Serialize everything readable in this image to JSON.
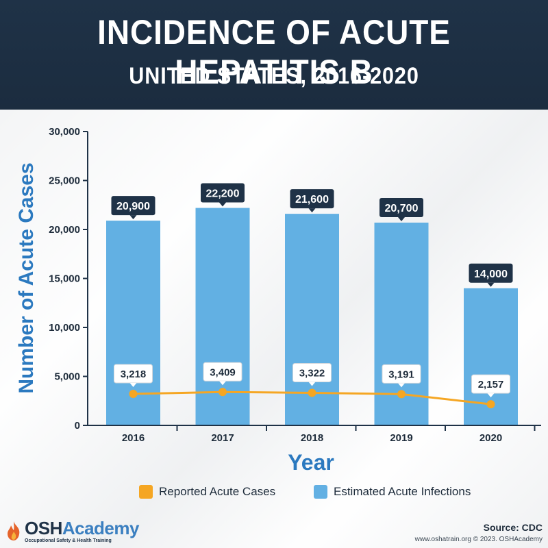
{
  "header": {
    "title": "INCIDENCE OF ACUTE HEPATITIS B",
    "subtitle": "UNITED STATES, 2016-2020"
  },
  "chart_data": {
    "type": "bar",
    "categories": [
      "2016",
      "2017",
      "2018",
      "2019",
      "2020"
    ],
    "series": [
      {
        "name": "Estimated Acute Infections",
        "type": "bar",
        "values": [
          20900,
          22200,
          21600,
          20700,
          14000
        ],
        "labels": [
          "20,900",
          "22,200",
          "21,600",
          "20,700",
          "14,000"
        ],
        "color": "#62b0e3"
      },
      {
        "name": "Reported Acute Cases",
        "type": "line",
        "values": [
          3218,
          3409,
          3322,
          3191,
          2157
        ],
        "labels": [
          "3,218",
          "3,409",
          "3,322",
          "3,191",
          "2,157"
        ],
        "color": "#f5a623"
      }
    ],
    "xlabel": "Year",
    "ylabel": "Number of Acute Cases",
    "ylim": [
      0,
      30000
    ],
    "yticks": [
      0,
      5000,
      10000,
      15000,
      20000,
      25000,
      30000
    ],
    "ytick_labels": [
      "0",
      "5,000",
      "10,000",
      "15,000",
      "20,000",
      "25,000",
      "30,000"
    ],
    "grid": false,
    "legend_position": "bottom"
  },
  "legend": {
    "reported_label": "Reported Acute Cases",
    "estimated_label": "Estimated Acute Infections"
  },
  "logo": {
    "name_dark": "OSH",
    "name_accent": "Academy",
    "tagline": "Occupational Safety & Health Training"
  },
  "footer": {
    "source": "Source: CDC",
    "credit": "www.oshatrain.org © 2023. OSHAcademy"
  },
  "colors": {
    "header_bg": "#1f3247",
    "axis_label": "#2b79bf",
    "label_box": "#1f3247"
  }
}
